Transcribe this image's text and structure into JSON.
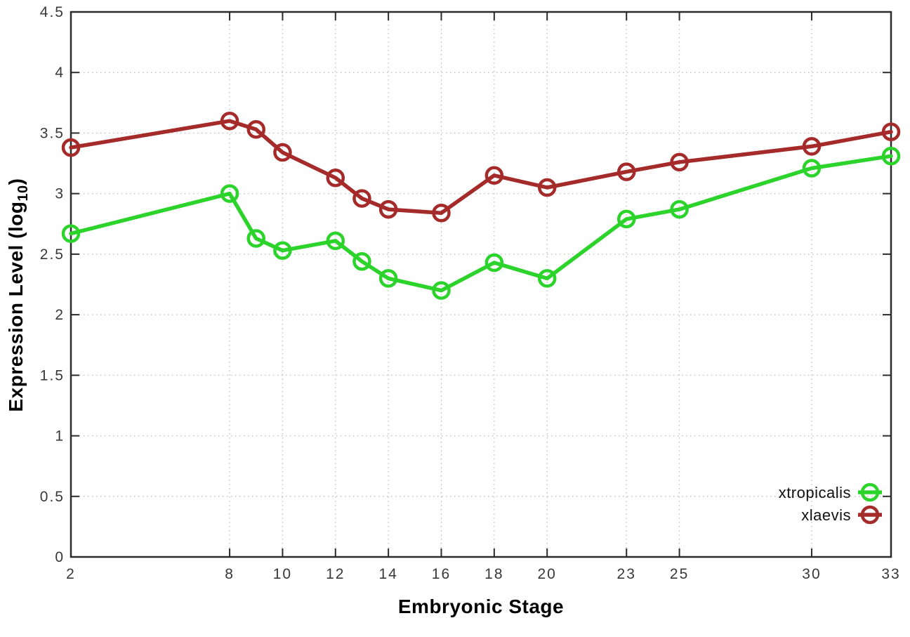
{
  "figure": {
    "xlabel": "Embryonic Stage",
    "ylabel": {
      "main": "Expression Level (log",
      "sub": "10",
      "end": ")"
    }
  },
  "chart_data": {
    "type": "line",
    "title": "",
    "xlabel": "Embryonic Stage",
    "ylabel": "Expression Level (log10)",
    "x": [
      2,
      8,
      9,
      10,
      12,
      13,
      14,
      16,
      18,
      20,
      23,
      25,
      30,
      33
    ],
    "series": [
      {
        "name": "xtropicalis",
        "color": "#2bd32b",
        "values": [
          2.67,
          3.0,
          2.63,
          2.53,
          2.61,
          2.44,
          2.3,
          2.2,
          2.43,
          2.3,
          2.79,
          2.87,
          3.21,
          3.31
        ]
      },
      {
        "name": "xlaevis",
        "color": "#a52a2a",
        "values": [
          3.38,
          3.6,
          3.53,
          3.34,
          3.13,
          2.96,
          2.87,
          2.84,
          3.15,
          3.05,
          3.18,
          3.26,
          3.39,
          3.51
        ]
      }
    ],
    "x_tick_values": [
      2,
      8,
      10,
      12,
      14,
      16,
      18,
      20,
      23,
      25,
      30,
      33
    ],
    "x_tick_labels": [
      "2",
      "8",
      "10",
      "12",
      "14",
      "16",
      "18",
      "20",
      "23",
      "25",
      "30",
      "33"
    ],
    "y_tick_values": [
      0,
      0.5,
      1,
      1.5,
      2,
      2.5,
      3,
      3.5,
      4,
      4.5
    ],
    "y_tick_labels": [
      "0",
      "0.5",
      "1",
      "1.5",
      "2",
      "2.5",
      "3",
      "3.5",
      "4",
      "4.5"
    ],
    "xlim": [
      2,
      33
    ],
    "ylim": [
      0,
      4.5
    ],
    "grid": true,
    "legend_position": "inside-bottom-right",
    "axis_color": "#2b2b2b",
    "grid_color": "#b8b8b8"
  }
}
